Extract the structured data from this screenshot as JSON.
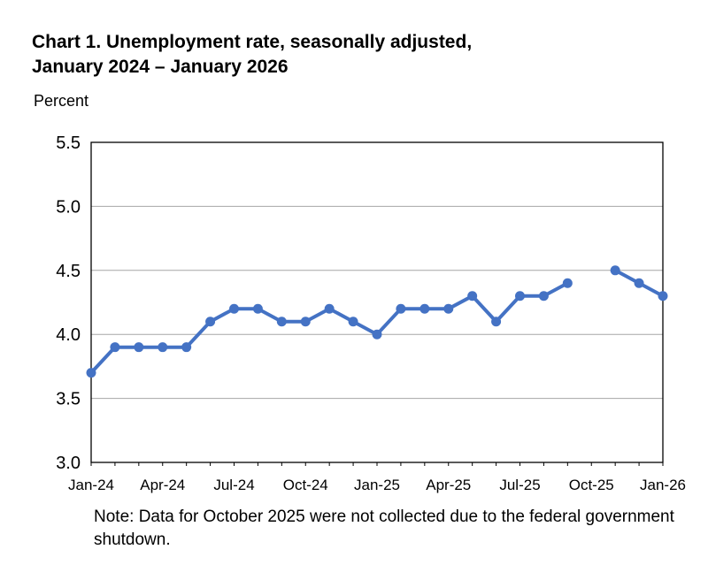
{
  "chart_data": {
    "type": "line",
    "title_line1": "Chart 1. Unemployment rate, seasonally adjusted,",
    "title_line2": "January 2024 – January 2026",
    "ylabel": "Percent",
    "ylim": [
      3.0,
      5.5
    ],
    "yticks": [
      "3.0",
      "3.5",
      "4.0",
      "4.5",
      "5.0",
      "5.5"
    ],
    "ytick_values": [
      3.0,
      3.5,
      4.0,
      4.5,
      5.0,
      5.5
    ],
    "xtick_labels": [
      "Jan-24",
      "Apr-24",
      "Jul-24",
      "Oct-24",
      "Jan-25",
      "Apr-25",
      "Jul-25",
      "Oct-25",
      "Jan-26"
    ],
    "xtick_indices": [
      0,
      3,
      6,
      9,
      12,
      15,
      18,
      21,
      24
    ],
    "series": [
      {
        "name": "Unemployment rate",
        "color": "#4472c4",
        "months": [
          "Jan-24",
          "Feb-24",
          "Mar-24",
          "Apr-24",
          "May-24",
          "Jun-24",
          "Jul-24",
          "Aug-24",
          "Sep-24",
          "Oct-24",
          "Nov-24",
          "Dec-24",
          "Jan-25",
          "Feb-25",
          "Mar-25",
          "Apr-25",
          "May-25",
          "Jun-25",
          "Jul-25",
          "Aug-25",
          "Sep-25",
          "Oct-25",
          "Nov-25",
          "Dec-25",
          "Jan-26"
        ],
        "values": [
          3.7,
          3.9,
          3.9,
          3.9,
          3.9,
          4.1,
          4.2,
          4.2,
          4.1,
          4.1,
          4.2,
          4.1,
          4.0,
          4.2,
          4.2,
          4.2,
          4.3,
          4.1,
          4.3,
          4.3,
          4.4,
          null,
          4.5,
          4.4,
          4.3
        ]
      }
    ],
    "grid": true
  },
  "note": "Note: Data for October 2025 were not collected due to the federal government shutdown."
}
